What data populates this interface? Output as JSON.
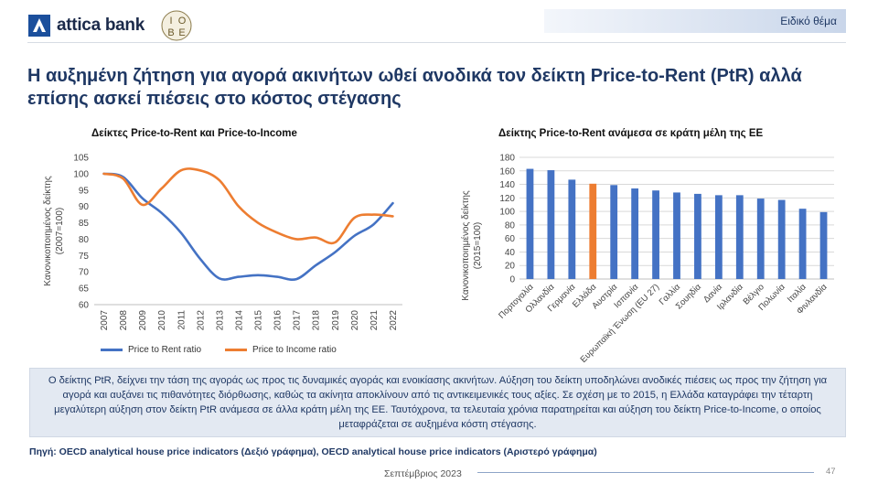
{
  "header": {
    "bank_name": "attica bank",
    "section_label": "Ειδικό θέμα",
    "iobe_letters": [
      "Ι",
      "Ο",
      "Β",
      "Ε"
    ]
  },
  "title": "Η αυξημένη ζήτηση για αγορά ακινήτων ωθεί ανοδικά τον δείκτη Price-to-Rent (PtR) αλλά επίσης ασκεί πιέσεις στο κόστος στέγασης",
  "colors": {
    "blue": "#4472c4",
    "orange": "#ed7d31",
    "dark_blue": "#1f3864"
  },
  "chart_data": [
    {
      "type": "line",
      "title": "Δείκτες Price-to-Rent και Price-to-Income",
      "ylabel": "Κανονικοποιημένος δείκτης (2007=100)",
      "xlabel": "",
      "ylim": [
        60,
        105
      ],
      "yticks": [
        60,
        65,
        70,
        75,
        80,
        85,
        90,
        95,
        100,
        105
      ],
      "x": [
        "2007",
        "2008",
        "2009",
        "2010",
        "2011",
        "2012",
        "2013",
        "2014",
        "2015",
        "2016",
        "2017",
        "2018",
        "2019",
        "2020",
        "2021",
        "2022"
      ],
      "grid": false,
      "legend": "bottom",
      "series": [
        {
          "name": "Price to Rent ratio",
          "color": "#4472c4",
          "values": [
            100,
            99,
            92.5,
            88,
            82,
            74,
            68,
            68.5,
            69,
            68.5,
            67.8,
            72,
            76,
            81,
            84.5,
            91
          ]
        },
        {
          "name": "Price to Income ratio",
          "color": "#ed7d31",
          "values": [
            100,
            98.5,
            90.5,
            95.5,
            101,
            101,
            98,
            90,
            85,
            82,
            80,
            80.5,
            79,
            86.5,
            87.5,
            87
          ]
        }
      ]
    },
    {
      "type": "bar",
      "title": "Δείκτης Price-to-Rent ανάμεσα σε κράτη μέλη της ΕΕ",
      "ylabel": "Κανονικοποιημένος δείκτης (2015=100)",
      "xlabel": "",
      "ylim": [
        0,
        180
      ],
      "yticks": [
        0,
        20,
        40,
        60,
        80,
        100,
        120,
        140,
        160,
        180
      ],
      "grid": true,
      "categories": [
        "Πορτογαλία",
        "Ολλανδία",
        "Γερμανία",
        "Ελλάδα",
        "Αυστρία",
        "Ισπανία",
        "Ευρωπαϊκή Ένωση (EU 27)",
        "Γαλλία",
        "Σουηδία",
        "Δανία",
        "Ιρλανδία",
        "Βέλγιο",
        "Πολωνία",
        "Ιταλία",
        "Φινλανδία"
      ],
      "values": [
        163,
        161,
        147,
        141,
        139,
        134,
        131,
        128,
        126,
        124,
        124,
        119,
        117,
        104,
        99
      ],
      "highlight_index": 3,
      "bar_color": "#4472c4",
      "highlight_color": "#ed7d31"
    }
  ],
  "note": "Ο δείκτης PtR, δείχνει την τάση της αγοράς ως προς τις δυναμικές αγοράς και ενοικίασης ακινήτων. Αύξηση του δείκτη υποδηλώνει ανοδικές πιέσεις ως προς την ζήτηση για αγορά και αυξάνει τις πιθανότητες διόρθωσης, καθώς τα ακίνητα αποκλίνουν από τις αντικειμενικές τους αξίες. Σε σχέση  με το 2015, η Ελλάδα καταγράφει την τέταρτη μεγαλύτερη αύξηση στον δείκτη PtR ανάμεσα σε άλλα κράτη μέλη της ΕΕ. Ταυτόχρονα, τα τελευταία χρόνια παρατηρείται και αύξηση του δείκτη Price-to-Income, ο οποίος μεταφράζεται σε αυξημένα κόστη στέγασης.",
  "source": "Πηγή: OECD analytical  house price indicators (Δεξιό γράφημα), OECD analytical  house price indicators (Αριστερό γράφημα)",
  "footer": {
    "date": "Σεπτέμβριος 2023",
    "page": "47"
  }
}
